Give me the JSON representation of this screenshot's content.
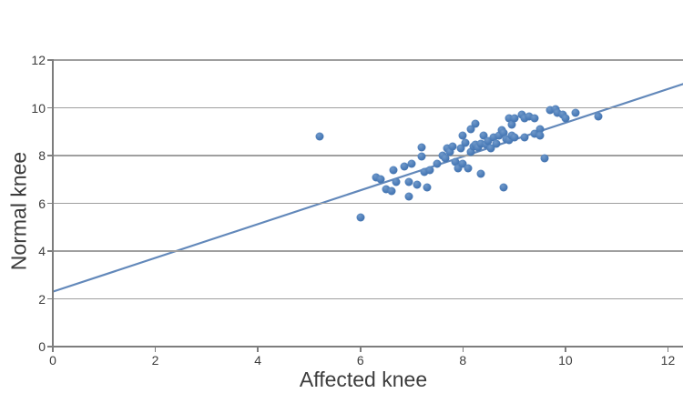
{
  "chart_data": {
    "type": "scatter",
    "title": "",
    "xlabel": "Affected knee",
    "ylabel": "Normal knee",
    "xlim": [
      0,
      12
    ],
    "ylim": [
      0,
      12
    ],
    "xticks": [
      0,
      2,
      4,
      6,
      8,
      10,
      12
    ],
    "yticks": [
      0,
      2,
      4,
      6,
      8,
      10,
      12
    ],
    "grid": "horizontal-only",
    "legend": "none",
    "series": [
      {
        "name": "knee-observations",
        "type": "scatter",
        "points": [
          [
            5.2,
            8.8
          ],
          [
            6.0,
            5.4
          ],
          [
            6.3,
            7.1
          ],
          [
            6.4,
            7.0
          ],
          [
            6.5,
            6.6
          ],
          [
            6.6,
            6.5
          ],
          [
            6.65,
            7.4
          ],
          [
            6.7,
            6.9
          ],
          [
            6.85,
            7.55
          ],
          [
            6.95,
            6.9
          ],
          [
            6.95,
            6.3
          ],
          [
            7.0,
            7.65
          ],
          [
            7.1,
            6.8
          ],
          [
            7.2,
            8.35
          ],
          [
            7.2,
            7.95
          ],
          [
            7.25,
            7.3
          ],
          [
            7.3,
            6.65
          ],
          [
            7.35,
            7.4
          ],
          [
            7.5,
            7.65
          ],
          [
            7.6,
            8.0
          ],
          [
            7.65,
            7.9
          ],
          [
            7.7,
            8.3
          ],
          [
            7.75,
            8.15
          ],
          [
            7.8,
            8.4
          ],
          [
            7.85,
            7.75
          ],
          [
            7.9,
            7.45
          ],
          [
            7.95,
            8.3
          ],
          [
            8.0,
            8.85
          ],
          [
            8.0,
            7.65
          ],
          [
            8.05,
            8.55
          ],
          [
            8.1,
            7.45
          ],
          [
            8.15,
            9.1
          ],
          [
            8.15,
            8.15
          ],
          [
            8.2,
            8.4
          ],
          [
            8.25,
            9.35
          ],
          [
            8.25,
            8.45
          ],
          [
            8.3,
            8.35
          ],
          [
            8.35,
            8.5
          ],
          [
            8.35,
            7.25
          ],
          [
            8.4,
            8.85
          ],
          [
            8.45,
            8.45
          ],
          [
            8.5,
            8.6
          ],
          [
            8.55,
            8.3
          ],
          [
            8.6,
            8.75
          ],
          [
            8.65,
            8.5
          ],
          [
            8.7,
            8.85
          ],
          [
            8.75,
            9.05
          ],
          [
            8.8,
            8.95
          ],
          [
            8.8,
            6.65
          ],
          [
            8.85,
            8.7
          ],
          [
            8.9,
            9.55
          ],
          [
            8.9,
            8.65
          ],
          [
            8.95,
            9.3
          ],
          [
            8.95,
            8.85
          ],
          [
            9.0,
            9.55
          ],
          [
            9.0,
            8.75
          ],
          [
            9.15,
            9.7
          ],
          [
            9.2,
            9.55
          ],
          [
            9.2,
            8.75
          ],
          [
            9.3,
            9.65
          ],
          [
            9.4,
            9.55
          ],
          [
            9.4,
            8.9
          ],
          [
            9.5,
            9.1
          ],
          [
            9.5,
            8.85
          ],
          [
            9.6,
            7.9
          ],
          [
            9.7,
            9.9
          ],
          [
            9.8,
            9.95
          ],
          [
            9.85,
            9.8
          ],
          [
            9.95,
            9.7
          ],
          [
            10.0,
            9.55
          ],
          [
            10.2,
            9.8
          ],
          [
            10.65,
            9.65
          ]
        ]
      },
      {
        "name": "trendline",
        "type": "line",
        "x1": 0,
        "y1": 2.3,
        "x2": 12.3,
        "y2": 11.0
      }
    ],
    "colors": {
      "point": "#4a7bb7",
      "trendline": "#6288ba",
      "grid": "#9f9f9f",
      "axis": "#7d7d7d",
      "text": "#3d3d3d",
      "background": "#ffffff"
    }
  }
}
